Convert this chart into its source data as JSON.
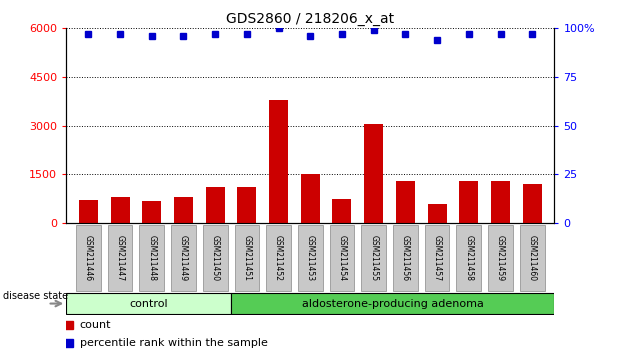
{
  "title": "GDS2860 / 218206_x_at",
  "samples": [
    "GSM211446",
    "GSM211447",
    "GSM211448",
    "GSM211449",
    "GSM211450",
    "GSM211451",
    "GSM211452",
    "GSM211453",
    "GSM211454",
    "GSM211455",
    "GSM211456",
    "GSM211457",
    "GSM211458",
    "GSM211459",
    "GSM211460"
  ],
  "counts": [
    700,
    800,
    680,
    800,
    1100,
    1100,
    3800,
    1500,
    750,
    3050,
    1300,
    600,
    1300,
    1300,
    1200
  ],
  "percentiles": [
    97,
    97,
    96,
    96,
    97,
    97,
    100,
    96,
    97,
    99,
    97,
    94,
    97,
    97,
    97
  ],
  "group_labels": [
    "control",
    "aldosterone-producing adenoma"
  ],
  "bar_color": "#cc0000",
  "dot_color": "#0000cc",
  "ylim_left": [
    0,
    6000
  ],
  "ylim_right": [
    0,
    100
  ],
  "yticks_left": [
    0,
    1500,
    3000,
    4500,
    6000
  ],
  "ytick_labels_left": [
    "0",
    "1500",
    "3000",
    "4500",
    "6000"
  ],
  "yticks_right": [
    0,
    25,
    50,
    75,
    100
  ],
  "ytick_labels_right": [
    "0",
    "25",
    "50",
    "75",
    "100%"
  ],
  "legend_count_label": "count",
  "legend_percentile_label": "percentile rank within the sample",
  "disease_state_label": "disease state",
  "n_control": 5,
  "n_adenoma": 10,
  "ctrl_color": "#ccffcc",
  "aden_color": "#55cc55"
}
